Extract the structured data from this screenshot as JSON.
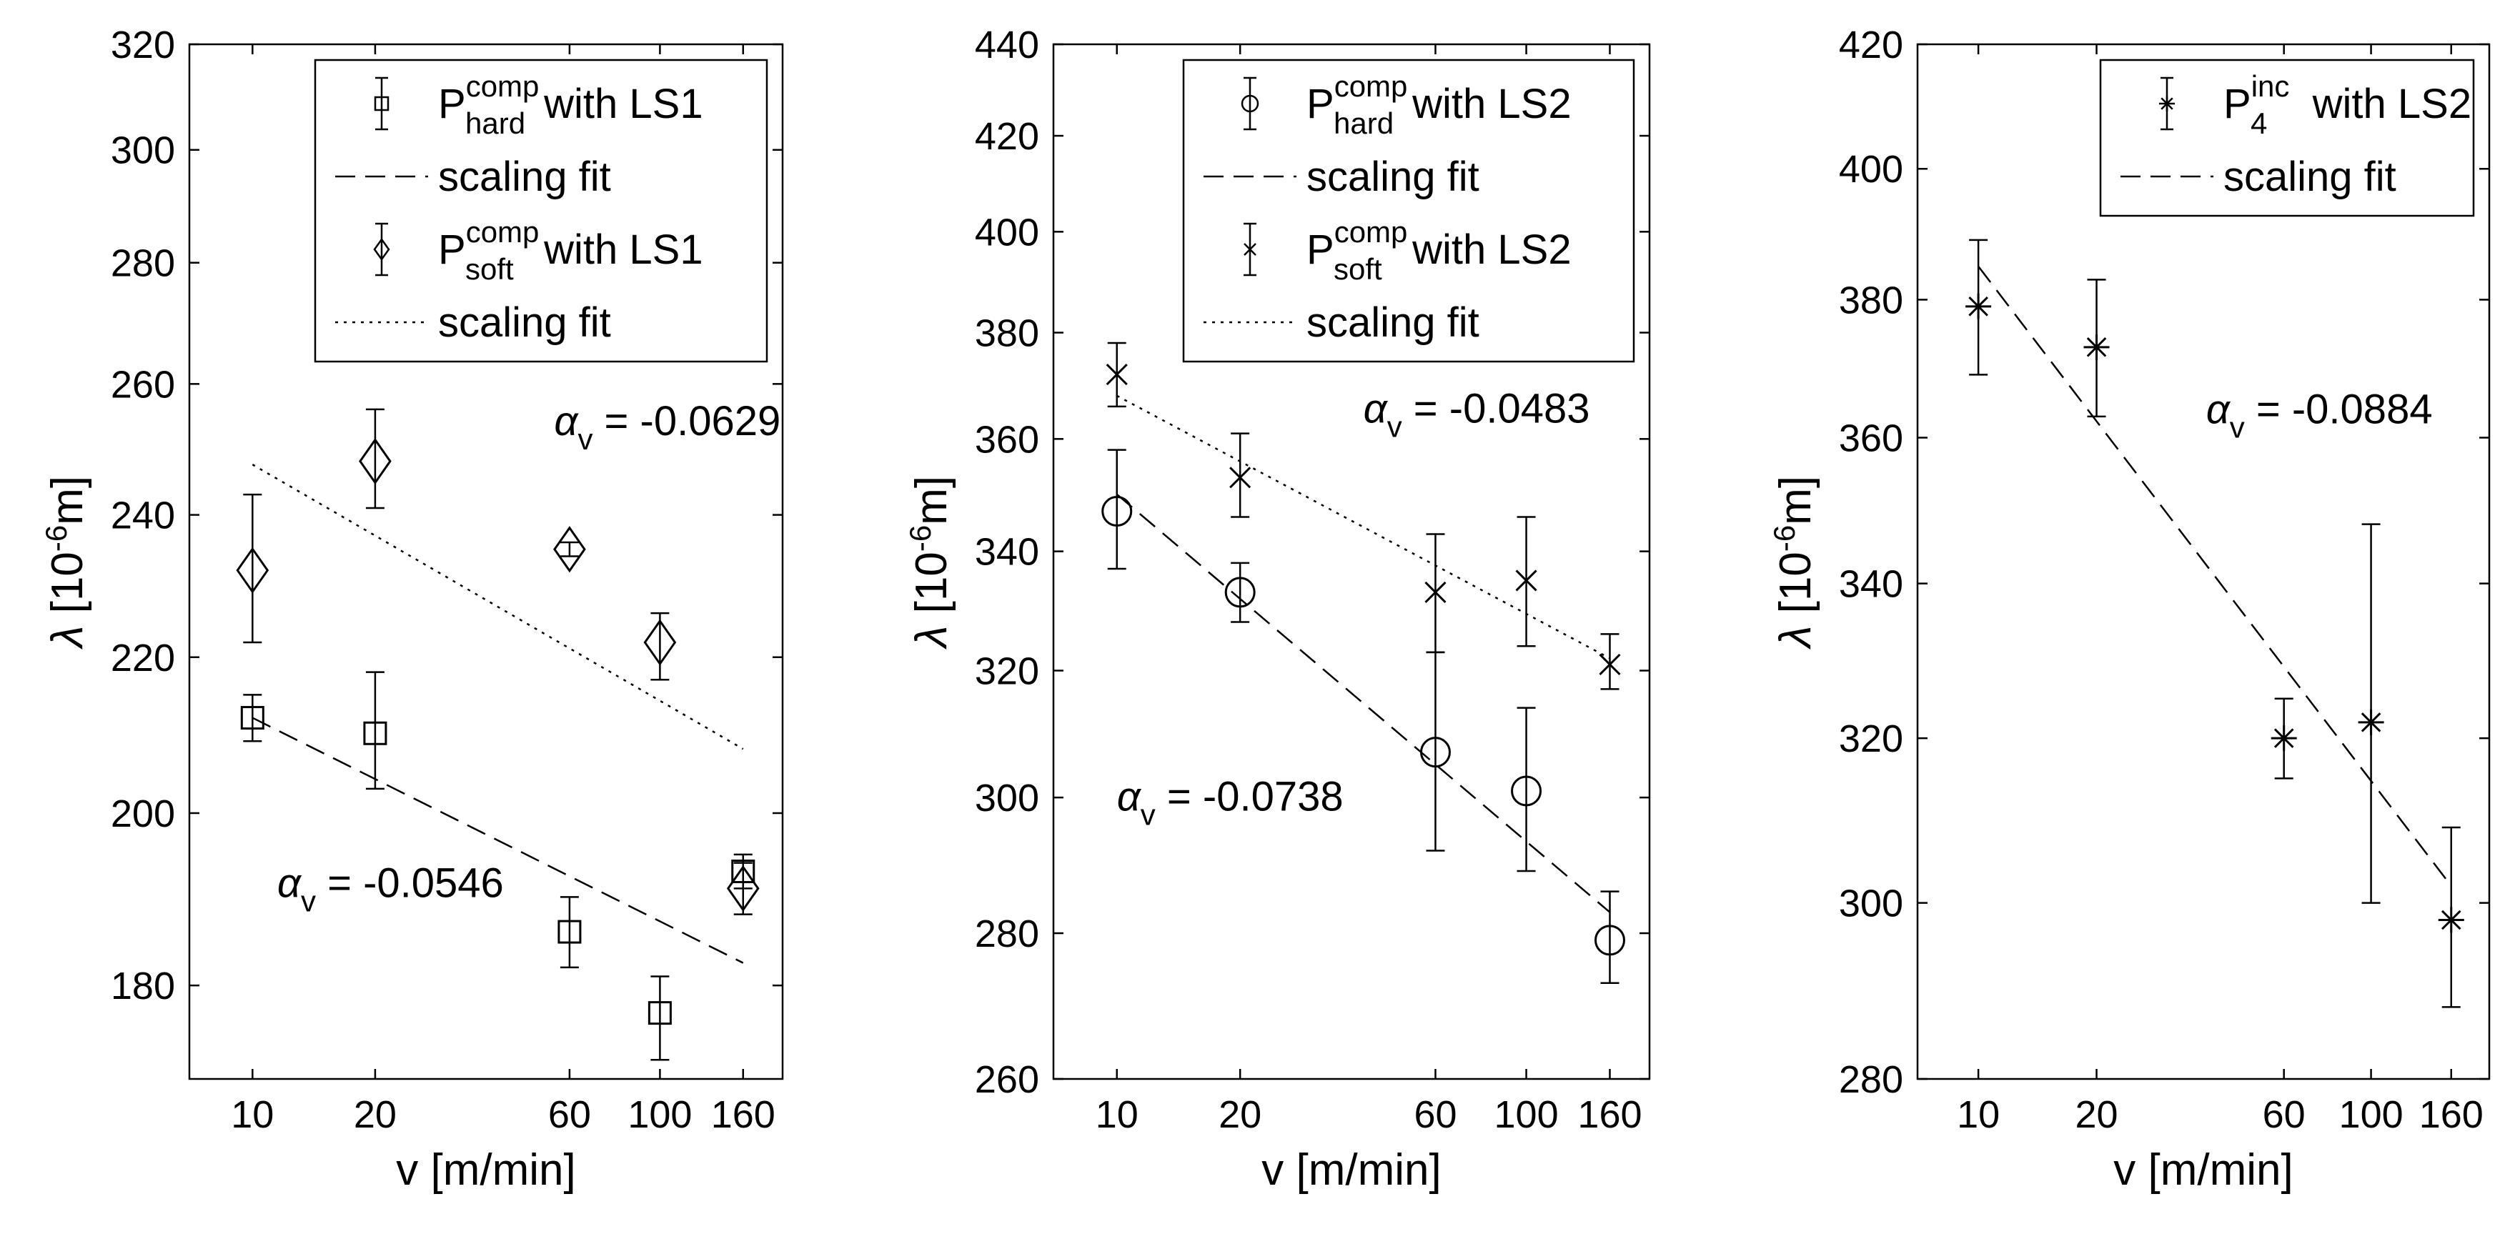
{
  "chart_data": [
    {
      "type": "scatter",
      "xscale": "log",
      "yscale": "log",
      "xlabel": "v [m/min]",
      "ylabel_symbol": "λ",
      "ylabel_unit_pre": "[10",
      "ylabel_unit_exp": "-6",
      "ylabel_unit_post": "m]",
      "xlim": [
        7,
        200
      ],
      "ylim": [
        170,
        320
      ],
      "xticks": [
        10,
        20,
        60,
        100,
        160
      ],
      "yticks": [
        180,
        200,
        220,
        240,
        260,
        280,
        300,
        320
      ],
      "series": [
        {
          "name": "P_hard^comp with LS1",
          "marker": "square",
          "x": [
            10,
            20,
            60,
            100,
            160
          ],
          "y": [
            212,
            210,
            186,
            177,
            193
          ],
          "err_low": [
            209,
            203,
            182,
            172,
            191
          ],
          "err_high": [
            215,
            218,
            190,
            181,
            195
          ],
          "fit": {
            "style": "dashed",
            "x": [
              10,
              160
            ],
            "y": [
              212,
              182.5
            ],
            "alpha": -0.0546
          }
        },
        {
          "name": "P_soft^comp with LS1",
          "marker": "diamond",
          "x": [
            10,
            20,
            60,
            100,
            160
          ],
          "y": [
            232,
            248,
            235,
            222,
            191
          ],
          "err_low": [
            222,
            241,
            234,
            217,
            188
          ],
          "err_high": [
            243,
            256,
            236,
            226,
            194
          ],
          "fit": {
            "style": "dotted",
            "x": [
              10,
              160
            ],
            "y": [
              247.5,
              208
            ],
            "alpha": -0.0629
          }
        }
      ],
      "legend": {
        "position": "top-right",
        "entries": [
          {
            "main": "P",
            "sup": "comp",
            "sub": "hard",
            "rest": " with LS1",
            "marker": "square"
          },
          {
            "line": "dashed",
            "text": "scaling fit"
          },
          {
            "main": "P",
            "sup": "comp",
            "sub": "soft",
            "rest": " with LS1",
            "marker": "diamond"
          },
          {
            "line": "dotted",
            "text": "scaling fit"
          }
        ]
      },
      "annotations": [
        {
          "pre": "α",
          "sub": "v",
          "value": " = -0.0629",
          "x": 55,
          "y": 252
        },
        {
          "pre": "α",
          "sub": "v",
          "value": " = -0.0546",
          "x": 11.5,
          "y": 190
        }
      ]
    },
    {
      "type": "scatter",
      "xscale": "log",
      "yscale": "log",
      "xlabel": "v [m/min]",
      "ylabel_symbol": "λ",
      "ylabel_unit_pre": "[10",
      "ylabel_unit_exp": "-6",
      "ylabel_unit_post": "m]",
      "xlim": [
        7,
        200
      ],
      "ylim": [
        260,
        440
      ],
      "xticks": [
        10,
        20,
        60,
        100,
        160
      ],
      "yticks": [
        260,
        280,
        300,
        320,
        340,
        360,
        380,
        400,
        420,
        440
      ],
      "series": [
        {
          "name": "P_hard^comp with LS2",
          "marker": "circle",
          "x": [
            10,
            20,
            60,
            100,
            160
          ],
          "y": [
            347,
            333,
            307,
            301,
            279
          ],
          "err_low": [
            337,
            328,
            292,
            289,
            273
          ],
          "err_high": [
            358,
            338,
            323,
            314,
            286
          ],
          "fit": {
            "style": "dashed",
            "x": [
              10,
              160
            ],
            "y": [
              350,
              283
            ],
            "alpha": -0.0738
          }
        },
        {
          "name": "P_soft^comp with LS2",
          "marker": "x",
          "x": [
            10,
            20,
            60,
            100,
            160
          ],
          "y": [
            372,
            353,
            333,
            335,
            321
          ],
          "err_low": [
            366,
            346,
            323,
            324,
            317
          ],
          "err_high": [
            378,
            361,
            343,
            346,
            326
          ],
          "fit": {
            "style": "dotted",
            "x": [
              10,
              160
            ],
            "y": [
              368,
              322
            ],
            "alpha": -0.0483
          }
        }
      ],
      "legend": {
        "position": "top-right",
        "entries": [
          {
            "main": "P",
            "sup": "comp",
            "sub": "hard",
            "rest": " with LS2",
            "marker": "circle"
          },
          {
            "line": "dashed",
            "text": "scaling fit"
          },
          {
            "main": "P",
            "sup": "comp",
            "sub": "soft",
            "rest": " with LS2",
            "marker": "x"
          },
          {
            "line": "dotted",
            "text": "scaling fit"
          }
        ]
      },
      "annotations": [
        {
          "pre": "α",
          "sub": "v",
          "value": " = -0.0483",
          "x": 40,
          "y": 363
        },
        {
          "pre": "α",
          "sub": "v",
          "value": " = -0.0738",
          "x": 10,
          "y": 298
        }
      ]
    },
    {
      "type": "scatter",
      "xscale": "log",
      "yscale": "log",
      "xlabel": "v [m/min]",
      "ylabel_symbol": "λ",
      "ylabel_unit_pre": "[10",
      "ylabel_unit_exp": "-6",
      "ylabel_unit_post": "m]",
      "xlim": [
        7,
        200
      ],
      "ylim": [
        280,
        420
      ],
      "xticks": [
        10,
        20,
        60,
        100,
        160
      ],
      "yticks": [
        280,
        300,
        320,
        340,
        360,
        380,
        400,
        420
      ],
      "series": [
        {
          "name": "P_4^inc with LS2",
          "marker": "star",
          "x": [
            10,
            20,
            60,
            100,
            160
          ],
          "y": [
            379,
            373,
            320,
            322,
            298
          ],
          "err_low": [
            369,
            363,
            315,
            300,
            288
          ],
          "err_high": [
            389,
            383,
            325,
            348,
            309
          ],
          "fit": {
            "style": "dashed",
            "x": [
              10,
              160
            ],
            "y": [
              385,
              302
            ],
            "alpha": -0.0884
          }
        }
      ],
      "legend": {
        "position": "top-right",
        "entries": [
          {
            "main": "P",
            "sup": "inc",
            "sub": "4",
            "rest": " with LS2",
            "marker": "star"
          },
          {
            "line": "dashed",
            "text": "scaling fit"
          }
        ]
      },
      "annotations": [
        {
          "pre": "α",
          "sub": "v",
          "value": " = -0.0884",
          "x": 38,
          "y": 362
        }
      ]
    }
  ]
}
